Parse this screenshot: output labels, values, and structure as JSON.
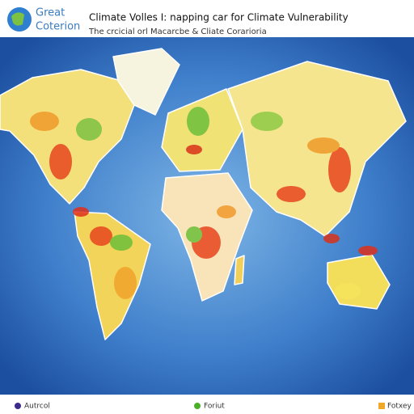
{
  "header": {
    "logo": [
      "Great",
      "Coterion"
    ],
    "title": "Climate Volles I: napping car for Climate Vulnerability",
    "subtitle": "The crcicial orl Macarcbe & Cliate Corarioria"
  },
  "legend": {
    "items": [
      {
        "label": "Autrcol"
      },
      {
        "label": "Foriut"
      },
      {
        "label": "Fotxey"
      }
    ]
  }
}
